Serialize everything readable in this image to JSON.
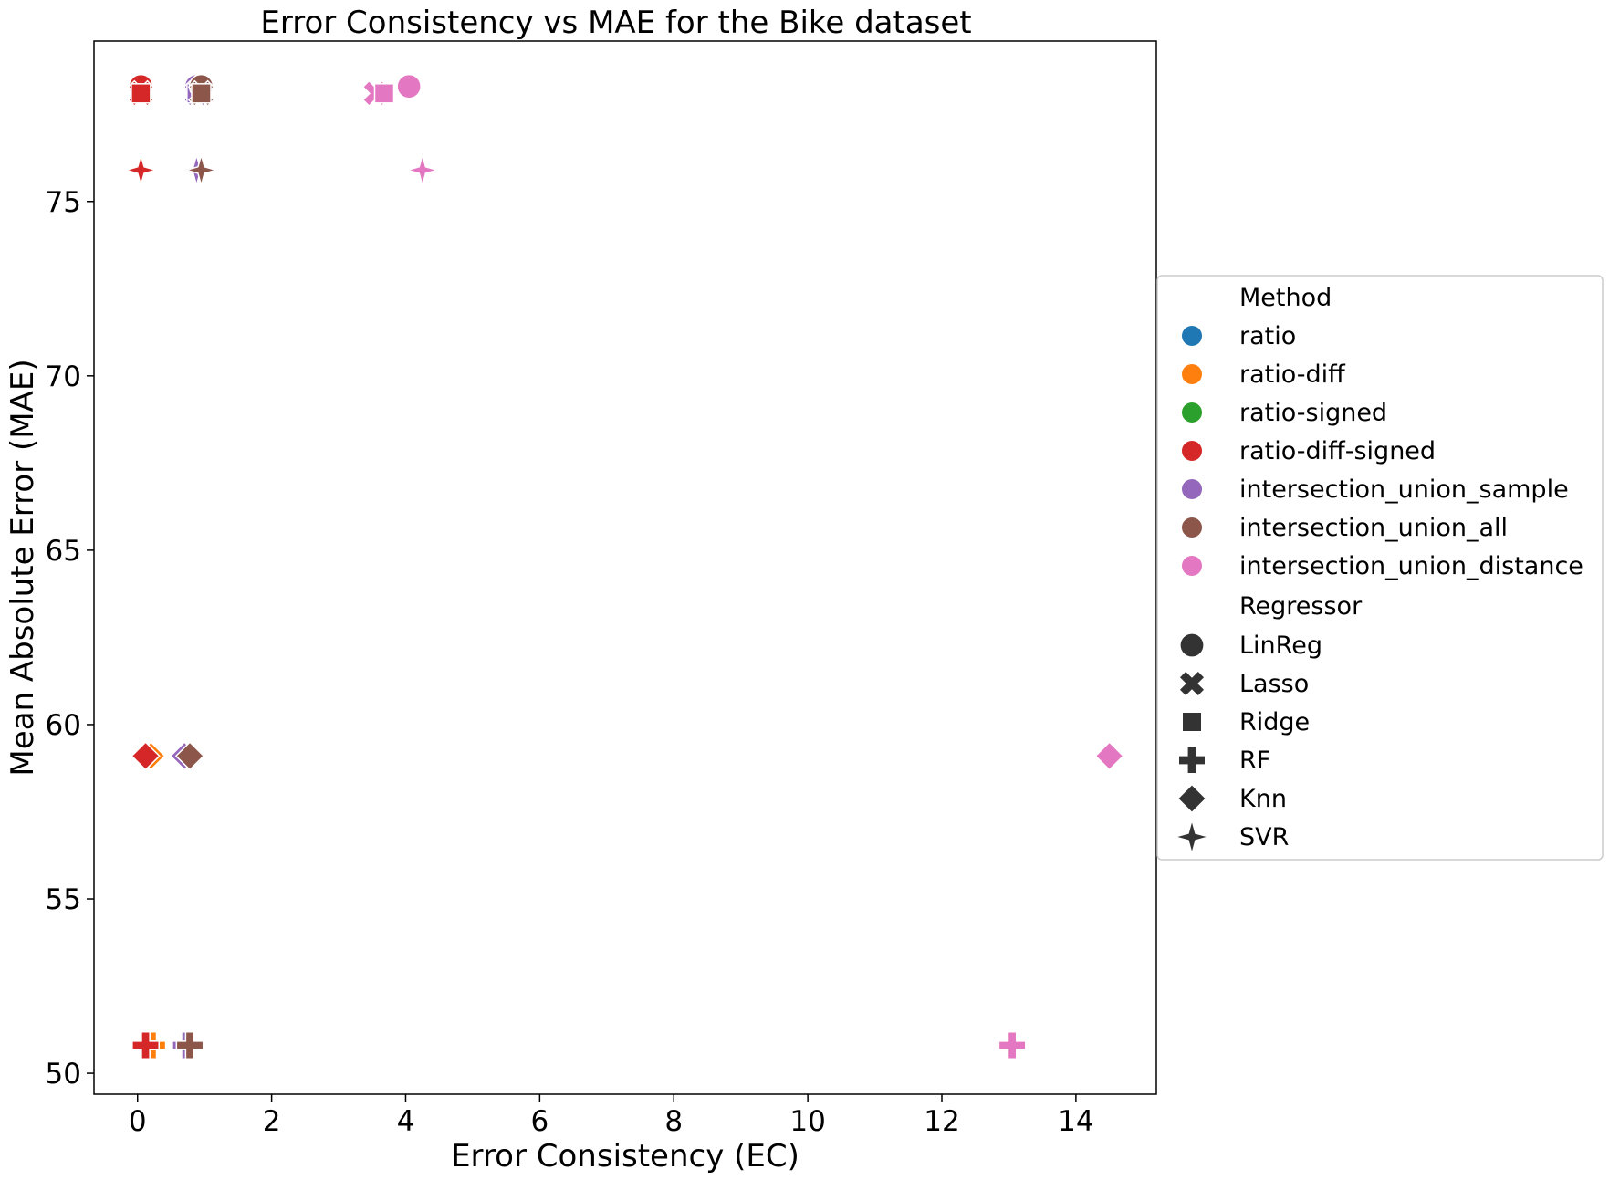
{
  "chart_data": {
    "type": "scatter",
    "title": "Error Consistency vs MAE for the Bike dataset",
    "xlabel": "Error Consistency (EC)",
    "ylabel": "Mean Absolute Error (MAE)",
    "xlim": [
      -0.65,
      15.2
    ],
    "ylim": [
      49.4,
      79.6
    ],
    "xticks": [
      0,
      2,
      4,
      6,
      8,
      10,
      12,
      14
    ],
    "yticks": [
      50,
      55,
      60,
      65,
      70,
      75
    ],
    "grid": false,
    "legend_position": "outside-right",
    "legend": {
      "method_title": "Method",
      "methods": [
        {
          "name": "ratio",
          "color": "#1f77b4"
        },
        {
          "name": "ratio-diff",
          "color": "#ff7f0e"
        },
        {
          "name": "ratio-signed",
          "color": "#2ca02c"
        },
        {
          "name": "ratio-diff-signed",
          "color": "#d62728"
        },
        {
          "name": "intersection_union_sample",
          "color": "#9467bd"
        },
        {
          "name": "intersection_union_all",
          "color": "#8c564b"
        },
        {
          "name": "intersection_union_distance",
          "color": "#e377c2"
        }
      ],
      "regressor_title": "Regressor",
      "regressors": [
        {
          "name": "LinReg",
          "marker": "circle"
        },
        {
          "name": "Lasso",
          "marker": "x"
        },
        {
          "name": "Ridge",
          "marker": "square"
        },
        {
          "name": "RF",
          "marker": "plus"
        },
        {
          "name": "Knn",
          "marker": "diamond"
        },
        {
          "name": "SVR",
          "marker": "star4"
        }
      ]
    },
    "points": [
      {
        "method": "ratio",
        "regressor": "LinReg",
        "x": 0.05,
        "y": 78.3
      },
      {
        "method": "ratio",
        "regressor": "Lasso",
        "x": 0.05,
        "y": 78.1
      },
      {
        "method": "ratio",
        "regressor": "Ridge",
        "x": 0.05,
        "y": 78.1
      },
      {
        "method": "ratio",
        "regressor": "RF",
        "x": 0.15,
        "y": 50.8
      },
      {
        "method": "ratio",
        "regressor": "Knn",
        "x": 0.15,
        "y": 59.1
      },
      {
        "method": "ratio",
        "regressor": "SVR",
        "x": 0.05,
        "y": 75.9
      },
      {
        "method": "ratio-diff",
        "regressor": "LinReg",
        "x": 0.05,
        "y": 78.3
      },
      {
        "method": "ratio-diff",
        "regressor": "Lasso",
        "x": 0.05,
        "y": 78.1
      },
      {
        "method": "ratio-diff",
        "regressor": "Ridge",
        "x": 0.05,
        "y": 78.1
      },
      {
        "method": "ratio-diff",
        "regressor": "RF",
        "x": 0.22,
        "y": 50.8
      },
      {
        "method": "ratio-diff",
        "regressor": "Knn",
        "x": 0.2,
        "y": 59.1
      },
      {
        "method": "ratio-diff",
        "regressor": "SVR",
        "x": 0.05,
        "y": 75.9
      },
      {
        "method": "ratio-signed",
        "regressor": "LinReg",
        "x": 0.05,
        "y": 78.3
      },
      {
        "method": "ratio-signed",
        "regressor": "Lasso",
        "x": 0.05,
        "y": 78.1
      },
      {
        "method": "ratio-signed",
        "regressor": "Ridge",
        "x": 0.05,
        "y": 78.1
      },
      {
        "method": "ratio-signed",
        "regressor": "RF",
        "x": 0.12,
        "y": 50.8
      },
      {
        "method": "ratio-signed",
        "regressor": "Knn",
        "x": 0.12,
        "y": 59.1
      },
      {
        "method": "ratio-signed",
        "regressor": "SVR",
        "x": 0.05,
        "y": 75.9
      },
      {
        "method": "ratio-diff-signed",
        "regressor": "LinReg",
        "x": 0.05,
        "y": 78.3
      },
      {
        "method": "ratio-diff-signed",
        "regressor": "Lasso",
        "x": 0.05,
        "y": 78.1
      },
      {
        "method": "ratio-diff-signed",
        "regressor": "Ridge",
        "x": 0.05,
        "y": 78.1
      },
      {
        "method": "ratio-diff-signed",
        "regressor": "RF",
        "x": 0.12,
        "y": 50.8
      },
      {
        "method": "ratio-diff-signed",
        "regressor": "Knn",
        "x": 0.12,
        "y": 59.1
      },
      {
        "method": "ratio-diff-signed",
        "regressor": "SVR",
        "x": 0.05,
        "y": 75.9
      },
      {
        "method": "intersection_union_sample",
        "regressor": "LinReg",
        "x": 0.88,
        "y": 78.3
      },
      {
        "method": "intersection_union_sample",
        "regressor": "Lasso",
        "x": 0.88,
        "y": 78.1
      },
      {
        "method": "intersection_union_sample",
        "regressor": "Ridge",
        "x": 0.88,
        "y": 78.1
      },
      {
        "method": "intersection_union_sample",
        "regressor": "RF",
        "x": 0.72,
        "y": 50.8
      },
      {
        "method": "intersection_union_sample",
        "regressor": "Knn",
        "x": 0.7,
        "y": 59.1
      },
      {
        "method": "intersection_union_sample",
        "regressor": "SVR",
        "x": 0.88,
        "y": 75.9
      },
      {
        "method": "intersection_union_all",
        "regressor": "LinReg",
        "x": 0.95,
        "y": 78.3
      },
      {
        "method": "intersection_union_all",
        "regressor": "Lasso",
        "x": 0.95,
        "y": 78.1
      },
      {
        "method": "intersection_union_all",
        "regressor": "Ridge",
        "x": 0.95,
        "y": 78.1
      },
      {
        "method": "intersection_union_all",
        "regressor": "RF",
        "x": 0.78,
        "y": 50.8
      },
      {
        "method": "intersection_union_all",
        "regressor": "Knn",
        "x": 0.78,
        "y": 59.1
      },
      {
        "method": "intersection_union_all",
        "regressor": "SVR",
        "x": 0.95,
        "y": 75.9
      },
      {
        "method": "intersection_union_distance",
        "regressor": "LinReg",
        "x": 4.05,
        "y": 78.3
      },
      {
        "method": "intersection_union_distance",
        "regressor": "Lasso",
        "x": 3.55,
        "y": 78.1
      },
      {
        "method": "intersection_union_distance",
        "regressor": "Ridge",
        "x": 3.68,
        "y": 78.1
      },
      {
        "method": "intersection_union_distance",
        "regressor": "RF",
        "x": 13.05,
        "y": 50.8
      },
      {
        "method": "intersection_union_distance",
        "regressor": "Knn",
        "x": 14.5,
        "y": 59.1
      },
      {
        "method": "intersection_union_distance",
        "regressor": "SVR",
        "x": 4.25,
        "y": 75.9
      }
    ]
  }
}
